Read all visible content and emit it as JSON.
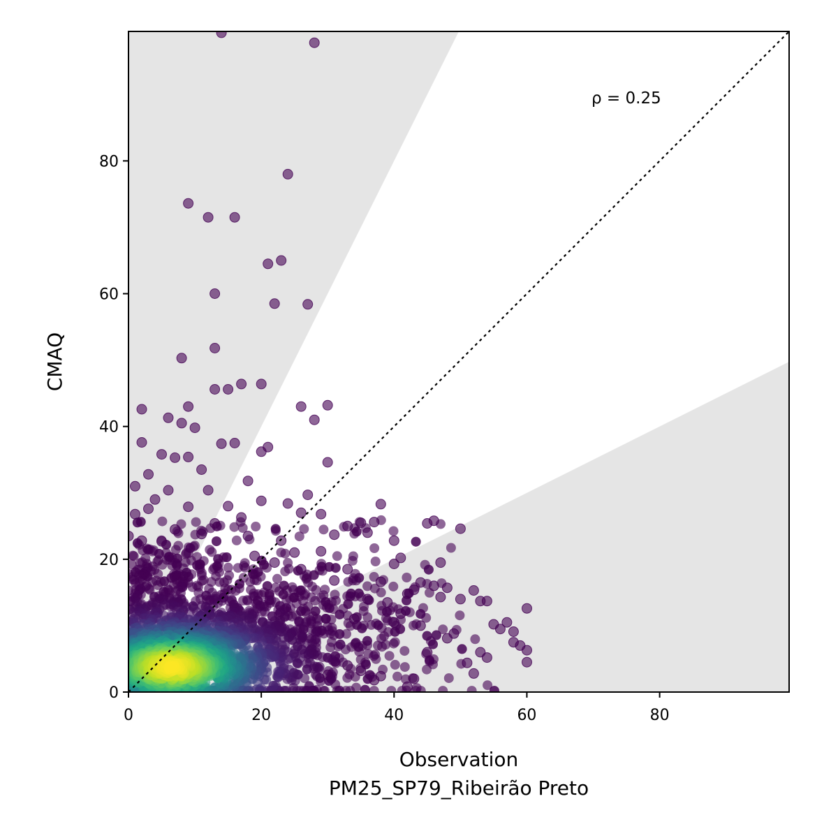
{
  "chart_data": {
    "type": "scatter",
    "title": "",
    "xlabel": "Observation",
    "xlabel_sub": "PM25_SP79_Ribeirão Preto",
    "ylabel": "CMAQ",
    "xlim": [
      0,
      99.5
    ],
    "ylim": [
      0,
      99.5
    ],
    "x_ticks": [
      0,
      20,
      40,
      60,
      80
    ],
    "y_ticks": [
      0,
      20,
      40,
      60,
      80
    ],
    "grid": false,
    "reference_line": {
      "type": "1:1",
      "style": "dotted",
      "color": "#000000"
    },
    "factor_of_two_band": {
      "lower_slope": 0.5,
      "upper_slope": 2.0,
      "outside_fill": "#e5e5e5"
    },
    "annotation": {
      "text": "ρ = 0.25",
      "x": 70,
      "y": 88
    },
    "colormap": "viridis",
    "point_alpha": 0.6,
    "outlier_points": [
      [
        14,
        99.3
      ],
      [
        28,
        97.8
      ],
      [
        24,
        78
      ],
      [
        9,
        73.6
      ],
      [
        12,
        71.5
      ],
      [
        16,
        71.5
      ],
      [
        21,
        64.5
      ],
      [
        23,
        65
      ],
      [
        13,
        60
      ],
      [
        22,
        58.5
      ],
      [
        27,
        58.4
      ],
      [
        8,
        50.3
      ],
      [
        13,
        51.8
      ],
      [
        13,
        45.6
      ],
      [
        15,
        45.6
      ],
      [
        17,
        46.4
      ],
      [
        20,
        46.4
      ],
      [
        26,
        43
      ],
      [
        30,
        43.2
      ],
      [
        28,
        41
      ],
      [
        2,
        42.6
      ],
      [
        9,
        43
      ],
      [
        6,
        41.3
      ],
      [
        8,
        40.5
      ],
      [
        10,
        39.8
      ],
      [
        21,
        36.9
      ],
      [
        20,
        36.2
      ],
      [
        14,
        37.4
      ],
      [
        16,
        37.5
      ],
      [
        30,
        34.6
      ],
      [
        2,
        37.6
      ],
      [
        5,
        35.8
      ],
      [
        7,
        35.3
      ],
      [
        9,
        35.4
      ],
      [
        11,
        33.5
      ],
      [
        3,
        32.8
      ],
      [
        18,
        31.8
      ],
      [
        6,
        30.4
      ],
      [
        1,
        31
      ],
      [
        20,
        28.8
      ],
      [
        24,
        28.4
      ],
      [
        27,
        29.7
      ],
      [
        26,
        27
      ],
      [
        29,
        26.8
      ],
      [
        38,
        28.3
      ],
      [
        35,
        25.5
      ],
      [
        37,
        25.6
      ],
      [
        36,
        24
      ],
      [
        33,
        25
      ],
      [
        40,
        22.8
      ],
      [
        45,
        25.4
      ],
      [
        46,
        25.8
      ],
      [
        50,
        24.6
      ],
      [
        47,
        19.5
      ],
      [
        41,
        20.2
      ],
      [
        40,
        19.3
      ],
      [
        44,
        16.5
      ],
      [
        46,
        16
      ],
      [
        48,
        15.7
      ],
      [
        52,
        15.3
      ],
      [
        42,
        14.8
      ],
      [
        43,
        15.4
      ],
      [
        47,
        14.3
      ],
      [
        50,
        14
      ],
      [
        53,
        13.7
      ],
      [
        54,
        13.7
      ],
      [
        55,
        10.2
      ],
      [
        57,
        10.5
      ],
      [
        58,
        9.1
      ],
      [
        59,
        7
      ],
      [
        60,
        6.3
      ],
      [
        60,
        4.5
      ],
      [
        60,
        12.6
      ],
      [
        58,
        7.5
      ],
      [
        53,
        6
      ],
      [
        54,
        5.2
      ],
      [
        56,
        9.5
      ],
      [
        51,
        4.4
      ],
      [
        52,
        2.8
      ],
      [
        43,
        2
      ],
      [
        35,
        3.2
      ],
      [
        38,
        2.4
      ],
      [
        33,
        4
      ],
      [
        42,
        0.8
      ],
      [
        37,
        1.8
      ],
      [
        30,
        2.6
      ],
      [
        48,
        8.1
      ],
      [
        45,
        6
      ],
      [
        40,
        10.5
      ],
      [
        38,
        16.6
      ],
      [
        36,
        14
      ],
      [
        33,
        18.5
      ],
      [
        31,
        16.8
      ],
      [
        25,
        21
      ],
      [
        23,
        22.8
      ],
      [
        18,
        23.5
      ],
      [
        17,
        26.3
      ],
      [
        15,
        28
      ],
      [
        12,
        30.4
      ],
      [
        9,
        27.9
      ],
      [
        4,
        29
      ],
      [
        3,
        27.6
      ],
      [
        1,
        26.8
      ],
      [
        19,
        20.5
      ],
      [
        26,
        18.5
      ],
      [
        34,
        11
      ],
      [
        44,
        10
      ],
      [
        49,
        8.8
      ],
      [
        41,
        11.8
      ],
      [
        39,
        13.5
      ],
      [
        31,
        23.7
      ],
      [
        29,
        21.2
      ],
      [
        22,
        19.5
      ],
      [
        13,
        25.4
      ],
      [
        11,
        23.8
      ],
      [
        7,
        24.5
      ],
      [
        5,
        22.7
      ],
      [
        2,
        22.8
      ],
      [
        0,
        23.5
      ]
    ],
    "cloud_shape": {
      "mode_x": 6.5,
      "mode_y": 3.8,
      "x_max": 60,
      "y_max_core": 24
    }
  }
}
